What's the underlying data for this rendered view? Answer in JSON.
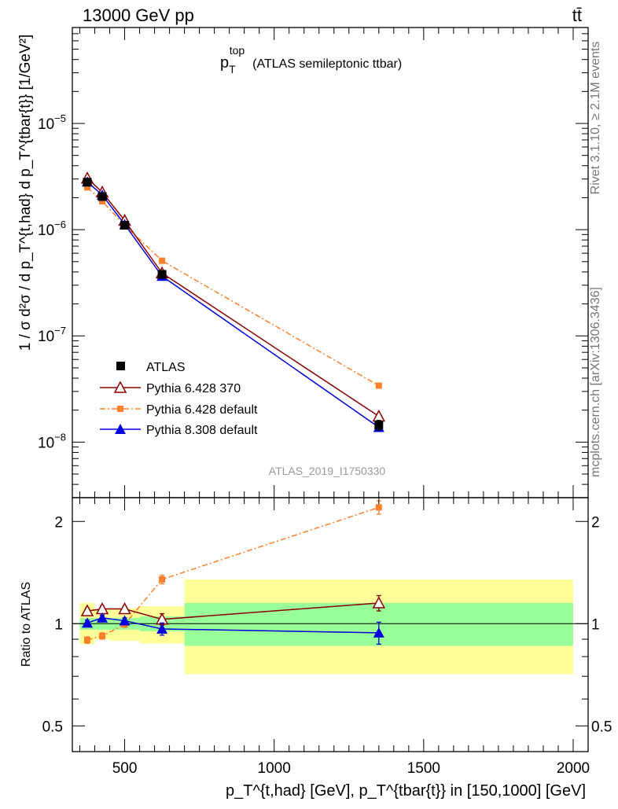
{
  "header": {
    "energy": "13000 GeV pp",
    "process": "tt̄"
  },
  "side_labels": {
    "rivet": "Rivet 3.1.10, ≥ 2.1M events",
    "mcplots": "mcplots.cern.ch [arXiv:1306.3436]"
  },
  "chart_data": [
    {
      "type": "scatter",
      "panel": "main",
      "title": {
        "p": "p",
        "sub": "T",
        "sup": "top",
        "rest": "(ATLAS semileptonic ttbar)"
      },
      "analysis_id": "ATLAS_2019_I1750330",
      "ylabel": "1 / σ d²σ / d p_T^{t,had} d p_T^{tbar{t}} [1/GeV²]",
      "yscale": "log",
      "ylim": [
        3e-09,
        8e-05
      ],
      "xlim": [
        325,
        2050
      ],
      "y_ticks": [
        {
          "value": 1e-08,
          "base": "10",
          "exp": "−8"
        },
        {
          "value": 1e-07,
          "base": "10",
          "exp": "−7"
        },
        {
          "value": 1e-06,
          "base": "10",
          "exp": "−6"
        },
        {
          "value": 1e-05,
          "base": "10",
          "exp": "−5"
        }
      ],
      "legend": {
        "placement": "lower-left",
        "entries": [
          "ATLAS",
          "Pythia 6.428 370",
          "Pythia 6.428 default",
          "Pythia 8.308 default"
        ]
      },
      "series": [
        {
          "name": "ATLAS",
          "color": "#000000",
          "marker": "square",
          "x": [
            375,
            425,
            500,
            625,
            1350
          ],
          "y": [
            2.8e-06,
            2.05e-06,
            1.1e-06,
            3.8e-07,
            1.45e-08
          ],
          "err": [
            1e-07,
            7e-08,
            4e-08,
            1.5e-08,
            1.5e-09
          ]
        },
        {
          "name": "Pythia 6.428 370",
          "color": "#8b0000",
          "marker": "triangle-open",
          "x": [
            375,
            425,
            500,
            625,
            1350
          ],
          "y": [
            3.05e-06,
            2.25e-06,
            1.22e-06,
            3.9e-07,
            1.75e-08
          ]
        },
        {
          "name": "Pythia 6.428 default",
          "color": "#ff7f2a",
          "marker": "square-small",
          "dash": true,
          "x": [
            375,
            425,
            500,
            625,
            1350
          ],
          "y": [
            2.5e-06,
            1.85e-06,
            1.1e-06,
            5.1e-07,
            3.4e-08
          ]
        },
        {
          "name": "Pythia 8.308 default",
          "color": "#0000dd",
          "marker": "triangle-filled",
          "x": [
            375,
            425,
            500,
            625,
            1350
          ],
          "y": [
            2.82e-06,
            2.12e-06,
            1.12e-06,
            3.65e-07,
            1.38e-08
          ]
        }
      ]
    },
    {
      "type": "scatter",
      "panel": "ratio",
      "ylabel": "Ratio to ATLAS",
      "xlabel": "p_T^{t,had} [GeV], p_T^{tbar{t}} in [150,1000] [GeV]",
      "yscale": "log",
      "ylim": [
        0.42,
        2.35
      ],
      "xlim": [
        325,
        2050
      ],
      "x_ticks": [
        {
          "value": 500,
          "label": "500"
        },
        {
          "value": 1000,
          "label": "1000"
        },
        {
          "value": 1500,
          "label": "1500"
        },
        {
          "value": 2000,
          "label": "2000"
        }
      ],
      "y_ticks": [
        {
          "value": 0.5,
          "label": "0.5"
        },
        {
          "value": 1,
          "label": "1"
        },
        {
          "value": 2,
          "label": "2"
        }
      ],
      "bands": [
        {
          "x0": 350,
          "x1": 400,
          "stat": [
            0.96,
            1.04
          ],
          "syst": [
            0.87,
            1.15
          ]
        },
        {
          "x0": 400,
          "x1": 450,
          "stat": [
            0.96,
            1.04
          ],
          "syst": [
            0.9,
            1.1
          ]
        },
        {
          "x0": 450,
          "x1": 550,
          "stat": [
            0.96,
            1.04
          ],
          "syst": [
            0.89,
            1.11
          ]
        },
        {
          "x0": 550,
          "x1": 700,
          "stat": [
            0.95,
            1.05
          ],
          "syst": [
            0.875,
            1.125
          ]
        },
        {
          "x0": 700,
          "x1": 2000,
          "stat": [
            0.86,
            1.15
          ],
          "syst": [
            0.71,
            1.35
          ]
        }
      ],
      "series": [
        {
          "name": "Pythia 6.428 370",
          "color": "#8b0000",
          "marker": "triangle-open",
          "x": [
            375,
            425,
            500,
            625,
            1350
          ],
          "y": [
            1.09,
            1.105,
            1.105,
            1.03,
            1.15
          ],
          "err": [
            0.02,
            0.02,
            0.02,
            0.04,
            0.06
          ]
        },
        {
          "name": "Pythia 6.428 default",
          "color": "#ff7f2a",
          "marker": "square-small",
          "dash": true,
          "x": [
            375,
            425,
            500,
            625,
            1350
          ],
          "y": [
            0.895,
            0.92,
            0.995,
            1.35,
            2.2
          ],
          "err": [
            0.02,
            0.02,
            0.02,
            0.04,
            0.1
          ]
        },
        {
          "name": "Pythia 8.308 default",
          "color": "#0000dd",
          "marker": "triangle-filled",
          "x": [
            375,
            425,
            500,
            625,
            1350
          ],
          "y": [
            1.005,
            1.04,
            1.02,
            0.965,
            0.94
          ],
          "err": [
            0.02,
            0.02,
            0.02,
            0.04,
            0.07
          ]
        }
      ]
    }
  ]
}
